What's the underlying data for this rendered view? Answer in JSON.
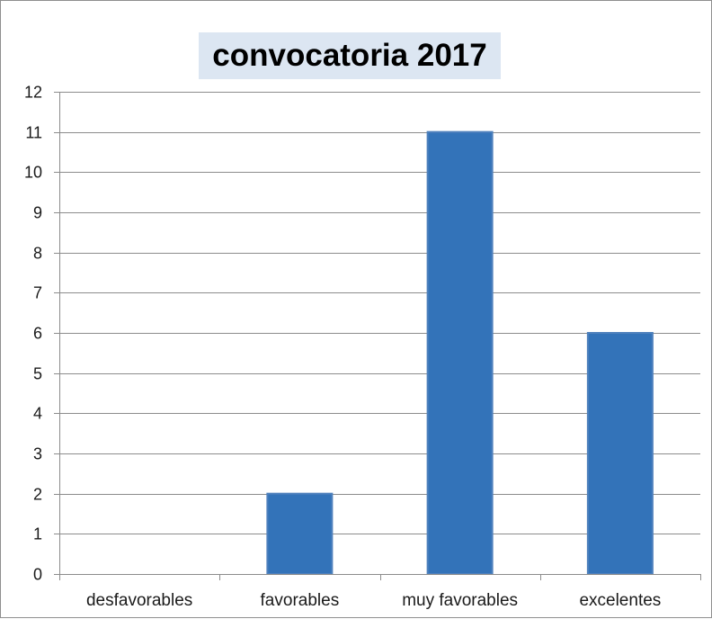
{
  "chart_data": {
    "type": "bar",
    "title": "convocatoria 2017",
    "xlabel": "",
    "ylabel": "",
    "categories": [
      "desfavorables",
      "favorables",
      "muy favorables",
      "excelentes"
    ],
    "values": [
      0,
      2,
      11,
      6
    ],
    "ylim": [
      0,
      12
    ],
    "yticks": [
      0,
      1,
      2,
      3,
      4,
      5,
      6,
      7,
      8,
      9,
      10,
      11,
      12
    ],
    "grid": true,
    "legend": "none",
    "bar_color": "#3373b9",
    "bar_edge_color": "#4f81bd",
    "title_background": "#dce6f2"
  }
}
